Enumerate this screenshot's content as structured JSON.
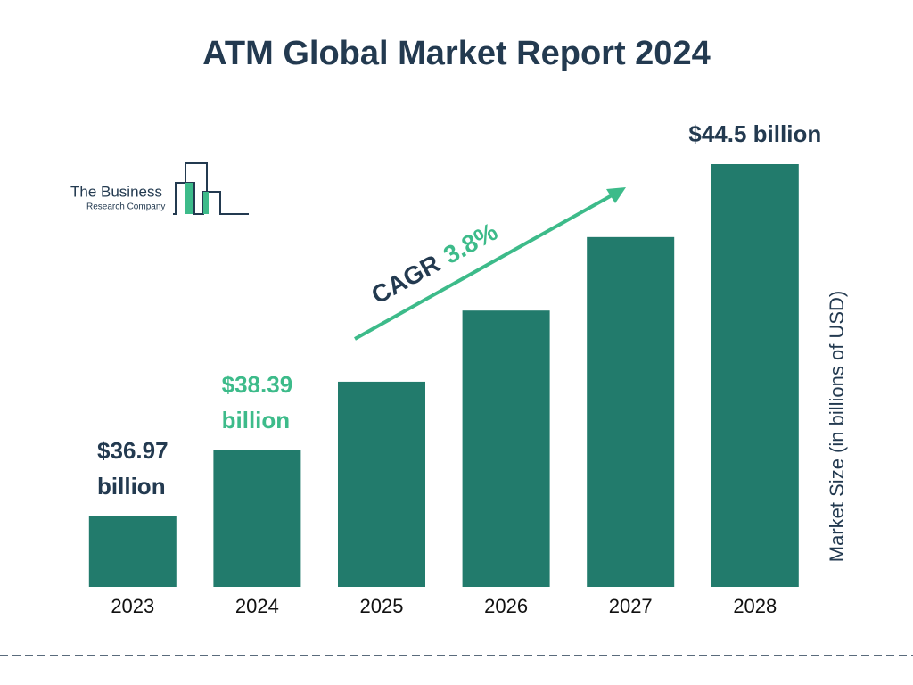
{
  "chart_data": {
    "type": "bar",
    "title": "ATM Global Market Report 2024",
    "categories": [
      "2023",
      "2024",
      "2025",
      "2026",
      "2027",
      "2028"
    ],
    "values": [
      36.97,
      38.39,
      39.85,
      41.37,
      42.94,
      44.5
    ],
    "value_labels": [
      "$36.97\nbillion",
      "$38.39\nbillion",
      null,
      null,
      null,
      "$44.5 billion"
    ],
    "color": "#227b6c",
    "highlight_color": "#3dbb8a",
    "y_label": "Market Size (in billions of USD)",
    "cagr": {
      "label": "CAGR",
      "value": "3.8%"
    }
  },
  "logo": {
    "line1": "The Business",
    "line2": "Research Company"
  }
}
